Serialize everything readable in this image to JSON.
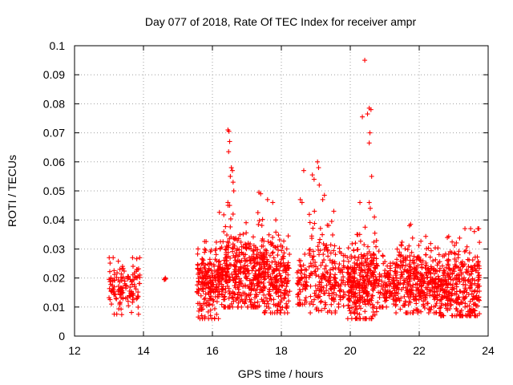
{
  "chart_data": {
    "type": "scatter",
    "title": "Day 077 of 2018, Rate Of TEC Index for receiver ampr",
    "xlabel": "GPS time / hours",
    "ylabel": "ROTI / TECUs",
    "xlim": [
      12,
      24
    ],
    "ylim": [
      0,
      0.1
    ],
    "x_ticks": [
      12,
      14,
      16,
      18,
      20,
      22,
      24
    ],
    "x_tick_labels": [
      "12",
      "14",
      "16",
      "18",
      "20",
      "22",
      "24"
    ],
    "y_ticks": [
      0,
      0.01,
      0.02,
      0.03,
      0.04,
      0.05,
      0.06,
      0.07,
      0.08,
      0.09,
      0.1
    ],
    "y_tick_labels": [
      "0",
      "0.01",
      "0.02",
      "0.03",
      "0.04",
      "0.05",
      "0.06",
      "0.07",
      "0.08",
      "0.09",
      "0.1"
    ],
    "grid": true,
    "marker": "plus",
    "color": "#ff0000",
    "series": [
      {
        "name": "ampr",
        "clusters": [
          {
            "x_range": [
              13.0,
              13.9
            ],
            "y_range": [
              0.007,
              0.027
            ],
            "y_center": 0.017,
            "count": 140
          },
          {
            "x_range": [
              14.5,
              14.65
            ],
            "y_range": [
              0.019,
              0.021
            ],
            "y_center": 0.02,
            "count": 4
          },
          {
            "x_range": [
              15.55,
              16.2
            ],
            "y_range": [
              0.006,
              0.035
            ],
            "y_center": 0.018,
            "count": 200
          },
          {
            "x_range": [
              16.2,
              17.5
            ],
            "y_range": [
              0.01,
              0.045
            ],
            "y_center": 0.022,
            "count": 420
          },
          {
            "x_range": [
              17.5,
              18.25
            ],
            "y_range": [
              0.008,
              0.04
            ],
            "y_center": 0.02,
            "count": 220
          },
          {
            "x_range": [
              18.45,
              18.75
            ],
            "y_range": [
              0.011,
              0.034
            ],
            "y_center": 0.017,
            "count": 60
          },
          {
            "x_range": [
              18.8,
              19.6
            ],
            "y_range": [
              0.008,
              0.043
            ],
            "y_center": 0.021,
            "count": 170
          },
          {
            "x_range": [
              19.65,
              19.85
            ],
            "y_range": [
              0.01,
              0.038
            ],
            "y_center": 0.018,
            "count": 40
          },
          {
            "x_range": [
              19.9,
              20.3
            ],
            "y_range": [
              0.006,
              0.035
            ],
            "y_center": 0.018,
            "count": 160
          },
          {
            "x_range": [
              20.3,
              20.85
            ],
            "y_range": [
              0.006,
              0.04
            ],
            "y_center": 0.019,
            "count": 170
          },
          {
            "x_range": [
              20.85,
              21.3
            ],
            "y_range": [
              0.01,
              0.03
            ],
            "y_center": 0.018,
            "count": 90
          },
          {
            "x_range": [
              21.3,
              22.6
            ],
            "y_range": [
              0.008,
              0.035
            ],
            "y_center": 0.019,
            "count": 360
          },
          {
            "x_range": [
              22.6,
              23.75
            ],
            "y_range": [
              0.007,
              0.037
            ],
            "y_center": 0.017,
            "count": 330
          }
        ],
        "notable_points": [
          [
            16.45,
            0.071
          ],
          [
            16.48,
            0.0705
          ],
          [
            16.5,
            0.067
          ],
          [
            16.47,
            0.0635
          ],
          [
            16.55,
            0.058
          ],
          [
            16.58,
            0.057
          ],
          [
            16.52,
            0.055
          ],
          [
            16.6,
            0.053
          ],
          [
            16.62,
            0.05
          ],
          [
            16.45,
            0.046
          ],
          [
            16.5,
            0.045
          ],
          [
            16.6,
            0.042
          ],
          [
            17.35,
            0.0495
          ],
          [
            17.4,
            0.049
          ],
          [
            17.6,
            0.047
          ],
          [
            17.75,
            0.046
          ],
          [
            18.65,
            0.057
          ],
          [
            18.55,
            0.047
          ],
          [
            18.6,
            0.046
          ],
          [
            18.9,
            0.0555
          ],
          [
            18.95,
            0.054
          ],
          [
            19.05,
            0.06
          ],
          [
            19.08,
            0.058
          ],
          [
            19.1,
            0.052
          ],
          [
            19.25,
            0.0485
          ],
          [
            19.2,
            0.047
          ],
          [
            20.28,
            0.046
          ],
          [
            20.35,
            0.0755
          ],
          [
            20.42,
            0.095
          ],
          [
            20.5,
            0.0765
          ],
          [
            20.55,
            0.0785
          ],
          [
            20.6,
            0.078
          ],
          [
            20.57,
            0.07
          ],
          [
            20.55,
            0.0665
          ],
          [
            20.62,
            0.055
          ],
          [
            20.55,
            0.046
          ],
          [
            20.58,
            0.044
          ],
          [
            20.7,
            0.041
          ],
          [
            21.75,
            0.0385
          ],
          [
            21.72,
            0.038
          ],
          [
            23.6,
            0.036
          ],
          [
            23.7,
            0.037
          ]
        ]
      }
    ]
  }
}
